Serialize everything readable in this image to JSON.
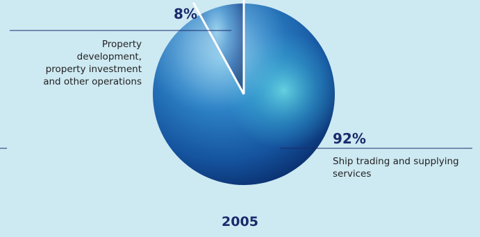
{
  "chart_data": {
    "type": "pie",
    "title": "2005",
    "slices": [
      {
        "label": "Property development, property investment and other operations",
        "value": 8,
        "display": "8%"
      },
      {
        "label": "Ship trading and supplying services",
        "value": 92,
        "display": "92%"
      }
    ]
  },
  "labels": {
    "small_pct": "8%",
    "small_desc": "Property development, property investment and other operations",
    "large_pct": "92%",
    "large_desc": "Ship trading and supplying services",
    "year": "2005"
  },
  "colors": {
    "background": "#cde9f2",
    "accent_text": "#1b2a6b",
    "leader_line": "#1b2a6b",
    "slice_divider": "#ffffff"
  }
}
